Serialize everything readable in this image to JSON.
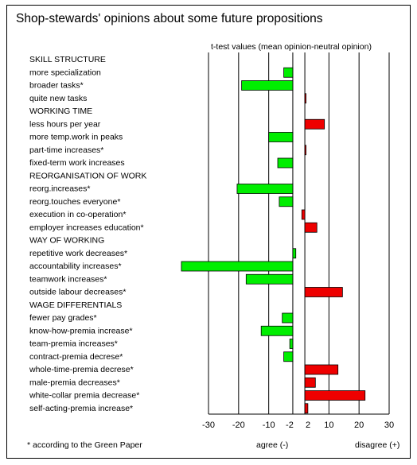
{
  "chart_data": {
    "type": "bar",
    "orientation": "horizontal",
    "title": "Shop-stewards' opinions about some future propositions",
    "subtitle": "t-test values (mean opinion-neutral opinion)",
    "xlim": [
      -30,
      30
    ],
    "xticks": [
      -30,
      -20,
      -10,
      -2,
      2,
      10,
      20,
      30
    ],
    "xtick_labels": [
      "-30",
      "-20",
      "-10",
      "-2",
      "2",
      "10",
      "20",
      "30"
    ],
    "xlabel_left": "agree (-)",
    "xlabel_right": "disagree (+)",
    "footnote": "* according to the Green Paper",
    "grid": true,
    "colors": {
      "negative": "#00ee00",
      "positive": "#ee0000",
      "gridline": "#000000"
    },
    "rows": [
      {
        "label": "SKILL STRUCTURE",
        "heading": true
      },
      {
        "label": "more specialization",
        "value": -5
      },
      {
        "label": "broader tasks*",
        "value": -19
      },
      {
        "label": "quite new tasks",
        "value": 2
      },
      {
        "label": "WORKING TIME",
        "heading": true
      },
      {
        "label": "less hours per year",
        "value": 8.5
      },
      {
        "label": "more temp.work in peaks",
        "value": -10
      },
      {
        "label": "part-time increases*",
        "value": 2
      },
      {
        "label": "fixed-term work increases",
        "value": -7
      },
      {
        "label": "REORGANISATION OF WORK",
        "heading": true
      },
      {
        "label": "reorg.increases*",
        "value": -20.5
      },
      {
        "label": "reorg.touches everyone*",
        "value": -6.5
      },
      {
        "label": "execution in co-operation*",
        "value": 1
      },
      {
        "label": "employer increases education*",
        "value": 6
      },
      {
        "label": "WAY OF WORKING",
        "heading": true
      },
      {
        "label": "repetitive work decreases*",
        "value": -1
      },
      {
        "label": "accountability increases*",
        "value": -39
      },
      {
        "label": "teamwork increases*",
        "value": -17.5
      },
      {
        "label": "outside labour decreases*",
        "value": 14.5
      },
      {
        "label": "WAGE DIFFERENTIALS",
        "heading": true
      },
      {
        "label": "fewer pay grades*",
        "value": -5.5
      },
      {
        "label": "know-how-premia increase*",
        "value": -12.5
      },
      {
        "label": "team-premia increases*",
        "value": -3
      },
      {
        "label": "contract-premia decrese*",
        "value": -5
      },
      {
        "label": "whole-time-premia decrese*",
        "value": 13
      },
      {
        "label": "male-premia decreases*",
        "value": 5.5
      },
      {
        "label": "white-collar premia decrease*",
        "value": 22
      },
      {
        "label": "self-acting-premia increase*",
        "value": 3
      }
    ]
  }
}
